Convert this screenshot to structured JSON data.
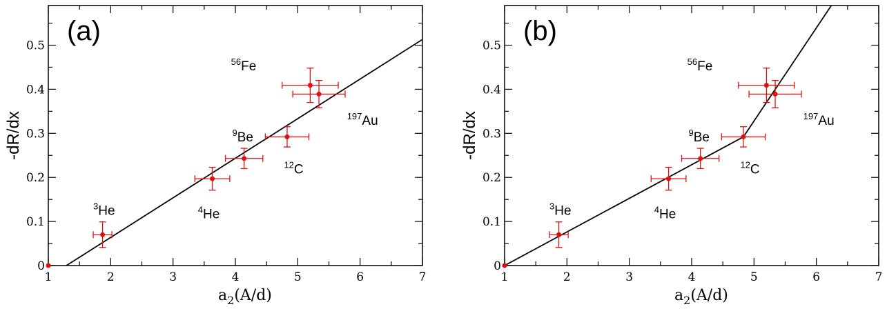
{
  "chart_data": [
    {
      "type": "scatter",
      "panel_label": "(a)",
      "xlabel": "a2(A/d)",
      "ylabel": "-dR/dx",
      "xlim": [
        1,
        7
      ],
      "ylim": [
        0,
        0.59
      ],
      "x_ticks": [
        1,
        2,
        3,
        4,
        5,
        6,
        7
      ],
      "y_ticks": [
        0,
        0.1,
        0.2,
        0.3,
        0.4,
        0.5
      ],
      "x_tick_labels": [
        "1",
        "2",
        "3",
        "4",
        "5",
        "6",
        "7"
      ],
      "y_tick_labels": [
        "0",
        "0.1",
        "0.2",
        "0.3",
        "0.4",
        "0.5"
      ],
      "grid": false,
      "points": [
        {
          "nucleus": "3He",
          "mass": "3",
          "element": "He",
          "x": 1.87,
          "y": 0.07,
          "xerr": 0.15,
          "yerr": 0.029
        },
        {
          "nucleus": "4He",
          "mass": "4",
          "element": "He",
          "x": 3.63,
          "y": 0.197,
          "xerr": 0.28,
          "yerr": 0.026
        },
        {
          "nucleus": "9Be",
          "mass": "9",
          "element": "Be",
          "x": 4.14,
          "y": 0.243,
          "xerr": 0.3,
          "yerr": 0.023
        },
        {
          "nucleus": "12C",
          "mass": "12",
          "element": "C",
          "x": 4.83,
          "y": 0.292,
          "xerr": 0.35,
          "yerr": 0.023
        },
        {
          "nucleus": "56Fe",
          "mass": "56",
          "element": "Fe",
          "x": 5.2,
          "y": 0.409,
          "xerr": 0.45,
          "yerr": 0.039
        },
        {
          "nucleus": "197Au",
          "mass": "197",
          "element": "Au",
          "x": 5.34,
          "y": 0.389,
          "xerr": 0.42,
          "yerr": 0.031
        }
      ],
      "origin_point": {
        "x": 1,
        "y": 0
      },
      "fit_line": [
        {
          "x": 1.29,
          "y": 0
        },
        {
          "x": 7,
          "y": 0.513
        }
      ],
      "labels": [
        {
          "mass": "3",
          "element": "He",
          "x": 1.72,
          "y": 0.115
        },
        {
          "mass": "4",
          "element": "He",
          "x": 3.4,
          "y": 0.107
        },
        {
          "mass": "9",
          "element": "Be",
          "x": 3.95,
          "y": 0.282
        },
        {
          "mass": "12",
          "element": "C",
          "x": 4.78,
          "y": 0.209
        },
        {
          "mass": "56",
          "element": "Fe",
          "x": 3.93,
          "y": 0.443
        },
        {
          "mass": "197",
          "element": "Au",
          "x": 5.79,
          "y": 0.319
        }
      ]
    },
    {
      "type": "scatter",
      "panel_label": "(b)",
      "xlabel": "a2(A/d)",
      "ylabel": "-dR/dx",
      "xlim": [
        1,
        7
      ],
      "ylim": [
        0,
        0.59
      ],
      "x_ticks": [
        1,
        2,
        3,
        4,
        5,
        6,
        7
      ],
      "y_ticks": [
        0,
        0.1,
        0.2,
        0.3,
        0.4,
        0.5
      ],
      "x_tick_labels": [
        "1",
        "2",
        "3",
        "4",
        "5",
        "6",
        "7"
      ],
      "y_tick_labels": [
        "0",
        "0.1",
        "0.2",
        "0.3",
        "0.4",
        "0.5"
      ],
      "grid": false,
      "points": [
        {
          "nucleus": "3He",
          "mass": "3",
          "element": "He",
          "x": 1.87,
          "y": 0.07,
          "xerr": 0.15,
          "yerr": 0.029
        },
        {
          "nucleus": "4He",
          "mass": "4",
          "element": "He",
          "x": 3.63,
          "y": 0.197,
          "xerr": 0.28,
          "yerr": 0.026
        },
        {
          "nucleus": "9Be",
          "mass": "9",
          "element": "Be",
          "x": 4.14,
          "y": 0.243,
          "xerr": 0.3,
          "yerr": 0.023
        },
        {
          "nucleus": "12C",
          "mass": "12",
          "element": "C",
          "x": 4.83,
          "y": 0.292,
          "xerr": 0.35,
          "yerr": 0.023
        },
        {
          "nucleus": "56Fe",
          "mass": "56",
          "element": "Fe",
          "x": 5.2,
          "y": 0.409,
          "xerr": 0.45,
          "yerr": 0.039
        },
        {
          "nucleus": "197Au",
          "mass": "197",
          "element": "Au",
          "x": 5.34,
          "y": 0.389,
          "xerr": 0.42,
          "yerr": 0.031
        }
      ],
      "origin_point": {
        "x": 1,
        "y": 0
      },
      "fit_line": [
        {
          "x": 1,
          "y": 0
        },
        {
          "x": 4.83,
          "y": 0.292
        },
        {
          "x": 6.24,
          "y": 0.59
        }
      ],
      "labels": [
        {
          "mass": "3",
          "element": "He",
          "x": 1.72,
          "y": 0.115
        },
        {
          "mass": "4",
          "element": "He",
          "x": 3.4,
          "y": 0.107
        },
        {
          "mass": "9",
          "element": "Be",
          "x": 3.95,
          "y": 0.282
        },
        {
          "mass": "12",
          "element": "C",
          "x": 4.78,
          "y": 0.209
        },
        {
          "mass": "56",
          "element": "Fe",
          "x": 3.93,
          "y": 0.443
        },
        {
          "mass": "197",
          "element": "Au",
          "x": 5.79,
          "y": 0.319
        }
      ]
    }
  ]
}
